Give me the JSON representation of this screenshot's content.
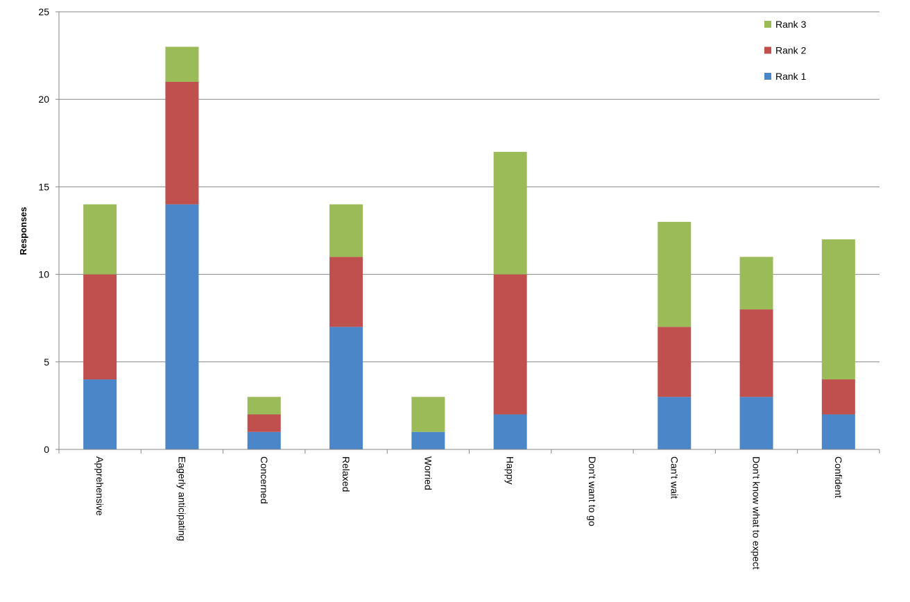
{
  "chart_data": {
    "type": "bar",
    "stacked": true,
    "title": "",
    "xlabel": "",
    "ylabel": "Responses",
    "ylim": [
      0,
      25
    ],
    "yticks": [
      0,
      5,
      10,
      15,
      20,
      25
    ],
    "grid": true,
    "legend_position": "top-right",
    "categories": [
      "Apprehensive",
      "Eagerly anticipating",
      "Concerned",
      "Relaxed",
      "Worried",
      "Happy",
      "Don't want to go",
      "Can't wait",
      "Don't know what to expect",
      "Confident"
    ],
    "series": [
      {
        "name": "Rank 1",
        "color": "#4a86c8",
        "values": [
          4,
          14,
          1,
          7,
          1,
          2,
          0,
          3,
          3,
          2
        ]
      },
      {
        "name": "Rank 2",
        "color": "#c0504d",
        "values": [
          6,
          7,
          1,
          4,
          0,
          8,
          0,
          4,
          5,
          2
        ]
      },
      {
        "name": "Rank 3",
        "color": "#9bbb59",
        "values": [
          4,
          2,
          1,
          3,
          2,
          7,
          0,
          6,
          3,
          8
        ]
      }
    ]
  }
}
